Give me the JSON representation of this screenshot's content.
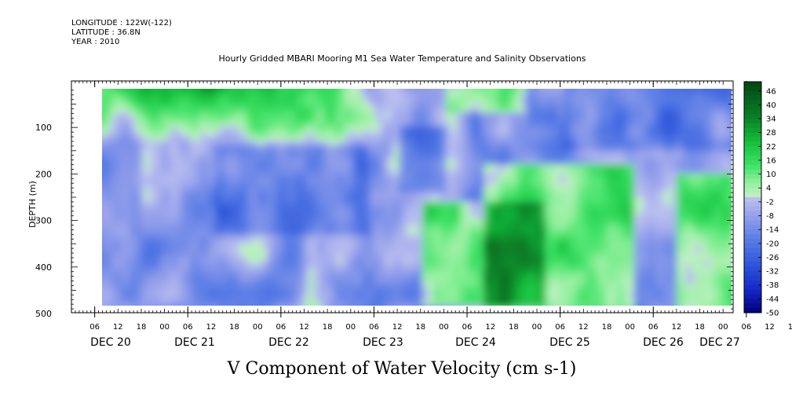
{
  "header": {
    "longitude": "LONGITUDE : 122W(-122)",
    "latitude": "LATITUDE : 36.8N",
    "year": "YEAR : 2010"
  },
  "chart_data": {
    "type": "heatmap",
    "title": "Hourly Gridded MBARI Mooring M1 Sea Water Temperature and Salinity Observations",
    "xlabel": "V Component of Water Velocity (cm s-1)",
    "ylabel": "DEPTH (m)",
    "ylim": [
      500,
      0
    ],
    "yticks": [
      "100",
      "200",
      "300",
      "400",
      "500"
    ],
    "hour_ticks": [
      "06",
      "12",
      "18",
      "00",
      "06",
      "12",
      "18",
      "00",
      "06",
      "12",
      "18",
      "00",
      "06",
      "12",
      "18",
      "00",
      "06",
      "12",
      "18",
      "00",
      "06",
      "12",
      "18",
      "00",
      "06",
      "12",
      "18",
      "00",
      "06",
      "12",
      "18",
      "00"
    ],
    "day_labels": [
      "DEC 20",
      "DEC 21",
      "DEC 22",
      "DEC 23",
      "DEC 24",
      "DEC 25",
      "DEC 26",
      "DEC 27"
    ],
    "colorbar": {
      "levels": [
        "46",
        "40",
        "34",
        "28",
        "22",
        "16",
        "10",
        "4",
        "-2",
        "-8",
        "-14",
        "-20",
        "-26",
        "-32",
        "-38",
        "-44",
        "-50"
      ],
      "min": -50,
      "max": 50
    },
    "x_range": [
      "DEC 19 18:00",
      "DEC 27 06:00"
    ],
    "data_range": [
      "DEC 20 12:00",
      "DEC 27 12:00"
    ]
  }
}
